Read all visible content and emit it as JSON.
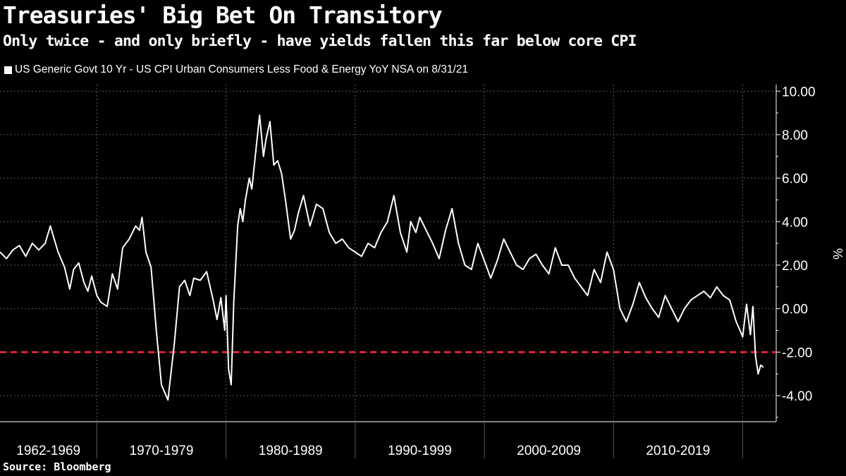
{
  "title": "Treasuries' Big Bet On Transitory",
  "subtitle": "Only twice - and only briefly - have yields fallen this far below core CPI",
  "legend_label": "US Generic Govt 10 Yr - US CPI Urban Consumers Less Food & Energy YoY NSA on 8/31/21",
  "source": "Source: Bloomberg",
  "colors": {
    "background": "#000000",
    "series": "#ffffff",
    "threshold": "#ff2a3d",
    "grid": "#5a5a5a",
    "text": "#ffffff"
  },
  "chart_data": {
    "type": "line",
    "ylabel": "%",
    "xlabel": "",
    "ylim": [
      -5.2,
      10.3
    ],
    "xlim": [
      1962.5,
      2022.6
    ],
    "y_ticks": [
      10.0,
      8.0,
      6.0,
      4.0,
      2.0,
      0.0,
      -2.0,
      -4.0
    ],
    "y_tick_labels": [
      "10.00",
      "8.00",
      "6.00",
      "4.00",
      "2.00",
      "0.00",
      "-2.00",
      "-4.00"
    ],
    "x_categories": [
      "1962-1969",
      "1970-1979",
      "1980-1989",
      "1990-1999",
      "2000-2009",
      "2010-2019"
    ],
    "x_category_bounds": [
      1962.5,
      1970,
      1980,
      1990,
      2000,
      2010,
      2020
    ],
    "grid": true,
    "reference_line": {
      "y": -2.0,
      "style": "dashed"
    },
    "series": [
      {
        "x": [
          1962.5,
          1963.0,
          1963.5,
          1964.0,
          1964.5,
          1965.0,
          1965.5,
          1966.0,
          1966.4,
          1967.0,
          1967.5,
          1967.9,
          1968.2,
          1968.6,
          1969.0,
          1969.3,
          1969.6,
          1970.0,
          1970.3,
          1970.8,
          1971.2,
          1971.6,
          1972.0,
          1972.5,
          1973.0,
          1973.3,
          1973.5,
          1973.8,
          1974.2,
          1974.6,
          1975.0,
          1975.5,
          1976.0,
          1976.4,
          1976.8,
          1977.2,
          1977.5,
          1978.0,
          1978.5,
          1979.0,
          1979.3,
          1979.6,
          1979.9,
          1980.0,
          1980.2,
          1980.4,
          1980.6,
          1980.9,
          1981.1,
          1981.3,
          1981.5,
          1981.8,
          1982.0,
          1982.3,
          1982.6,
          1982.9,
          1983.1,
          1983.4,
          1983.7,
          1984.0,
          1984.3,
          1984.6,
          1985.0,
          1985.3,
          1985.6,
          1986.0,
          1986.5,
          1987.0,
          1987.5,
          1988.0,
          1988.5,
          1989.0,
          1989.5,
          1990.0,
          1990.5,
          1991.0,
          1991.5,
          1992.0,
          1992.5,
          1993.0,
          1993.5,
          1994.0,
          1994.3,
          1994.7,
          1995.0,
          1995.5,
          1996.0,
          1996.5,
          1997.0,
          1997.5,
          1998.0,
          1998.5,
          1999.0,
          1999.5,
          2000.0,
          2000.5,
          2001.0,
          2001.5,
          2002.0,
          2002.5,
          2003.0,
          2003.5,
          2004.0,
          2004.5,
          2005.0,
          2005.5,
          2006.0,
          2006.5,
          2007.0,
          2007.5,
          2008.0,
          2008.5,
          2009.0,
          2009.5,
          2010.0,
          2010.5,
          2011.0,
          2011.5,
          2012.0,
          2012.5,
          2013.0,
          2013.5,
          2014.0,
          2014.5,
          2015.0,
          2015.5,
          2016.0,
          2016.5,
          2017.0,
          2017.5,
          2018.0,
          2018.5,
          2019.0,
          2019.5,
          2019.8,
          2020.0,
          2020.3,
          2020.6,
          2020.8,
          2021.0,
          2021.2,
          2021.4,
          2021.6
        ],
        "values": [
          2.6,
          2.3,
          2.7,
          2.9,
          2.4,
          3.0,
          2.7,
          3.0,
          3.8,
          2.6,
          1.9,
          0.9,
          1.8,
          2.1,
          1.2,
          0.8,
          1.5,
          0.6,
          0.3,
          0.1,
          1.6,
          0.9,
          2.8,
          3.2,
          3.8,
          3.6,
          4.2,
          2.6,
          1.9,
          -1.0,
          -3.5,
          -4.2,
          -1.6,
          1.0,
          1.3,
          0.6,
          1.4,
          1.3,
          1.7,
          0.4,
          -0.5,
          0.5,
          -1.0,
          0.6,
          -2.8,
          -3.5,
          0.3,
          3.8,
          4.6,
          4.0,
          5.0,
          6.0,
          5.5,
          7.2,
          8.9,
          7.0,
          7.8,
          8.6,
          6.6,
          6.8,
          6.2,
          5.0,
          3.2,
          3.6,
          4.4,
          5.2,
          3.8,
          4.8,
          4.6,
          3.5,
          3.0,
          3.2,
          2.8,
          2.6,
          2.4,
          3.0,
          2.8,
          3.5,
          4.0,
          5.2,
          3.5,
          2.6,
          4.0,
          3.5,
          4.2,
          3.6,
          3.0,
          2.3,
          3.6,
          4.6,
          3.0,
          2.0,
          1.8,
          3.0,
          2.2,
          1.4,
          2.2,
          3.2,
          2.6,
          2.0,
          1.8,
          2.3,
          2.5,
          2.0,
          1.6,
          2.8,
          2.0,
          2.0,
          1.4,
          1.0,
          0.6,
          1.8,
          1.2,
          2.6,
          1.8,
          0.0,
          -0.6,
          0.2,
          1.2,
          0.5,
          0.0,
          -0.4,
          0.6,
          0.0,
          -0.6,
          0.0,
          0.4,
          0.6,
          0.8,
          0.5,
          1.0,
          0.6,
          0.4,
          -0.6,
          -1.0,
          -1.3,
          0.2,
          -1.2,
          0.1,
          -2.2,
          -3.0,
          -2.6,
          -2.7
        ]
      }
    ]
  }
}
